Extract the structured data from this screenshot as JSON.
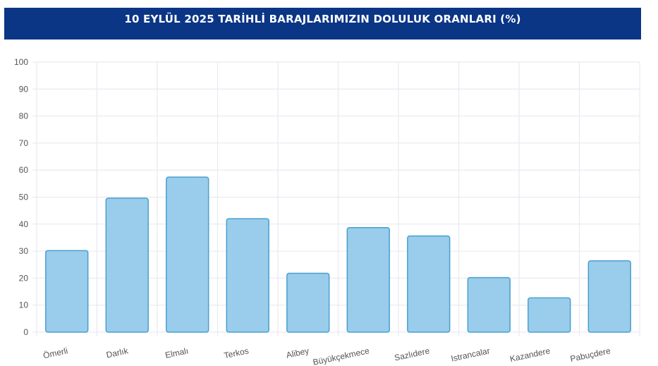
{
  "header": {
    "title": "10 EYLÜL 2025 TARİHLİ BARAJLARIMIZIN DOLULUK ORANLARI (%)"
  },
  "chart_data": {
    "type": "bar",
    "title": "10 EYLÜL 2025 TARİHLİ BARAJLARIMIZIN DOLULUK ORANLARI (%)",
    "categories": [
      "Ömerli",
      "Darlık",
      "Elmalı",
      "Terkos",
      "Alibey",
      "Büyükçekmece",
      "Sazlıdere",
      "Istrancalar",
      "Kazandere",
      "Pabuçdere"
    ],
    "values": [
      30.2,
      49.6,
      57.4,
      42.0,
      21.8,
      38.7,
      35.6,
      20.2,
      12.7,
      26.4
    ],
    "ylim": [
      0,
      100
    ],
    "yticks": [
      0,
      10,
      20,
      30,
      40,
      50,
      60,
      70,
      80,
      90,
      100
    ],
    "xlabel": "",
    "ylabel": "",
    "grid": true,
    "legend": "none",
    "colors": {
      "bar_fill": "#99cdeb",
      "bar_stroke": "#4a9fd0",
      "grid": "#e6e6ef",
      "title_bg": "#0b3585"
    }
  }
}
